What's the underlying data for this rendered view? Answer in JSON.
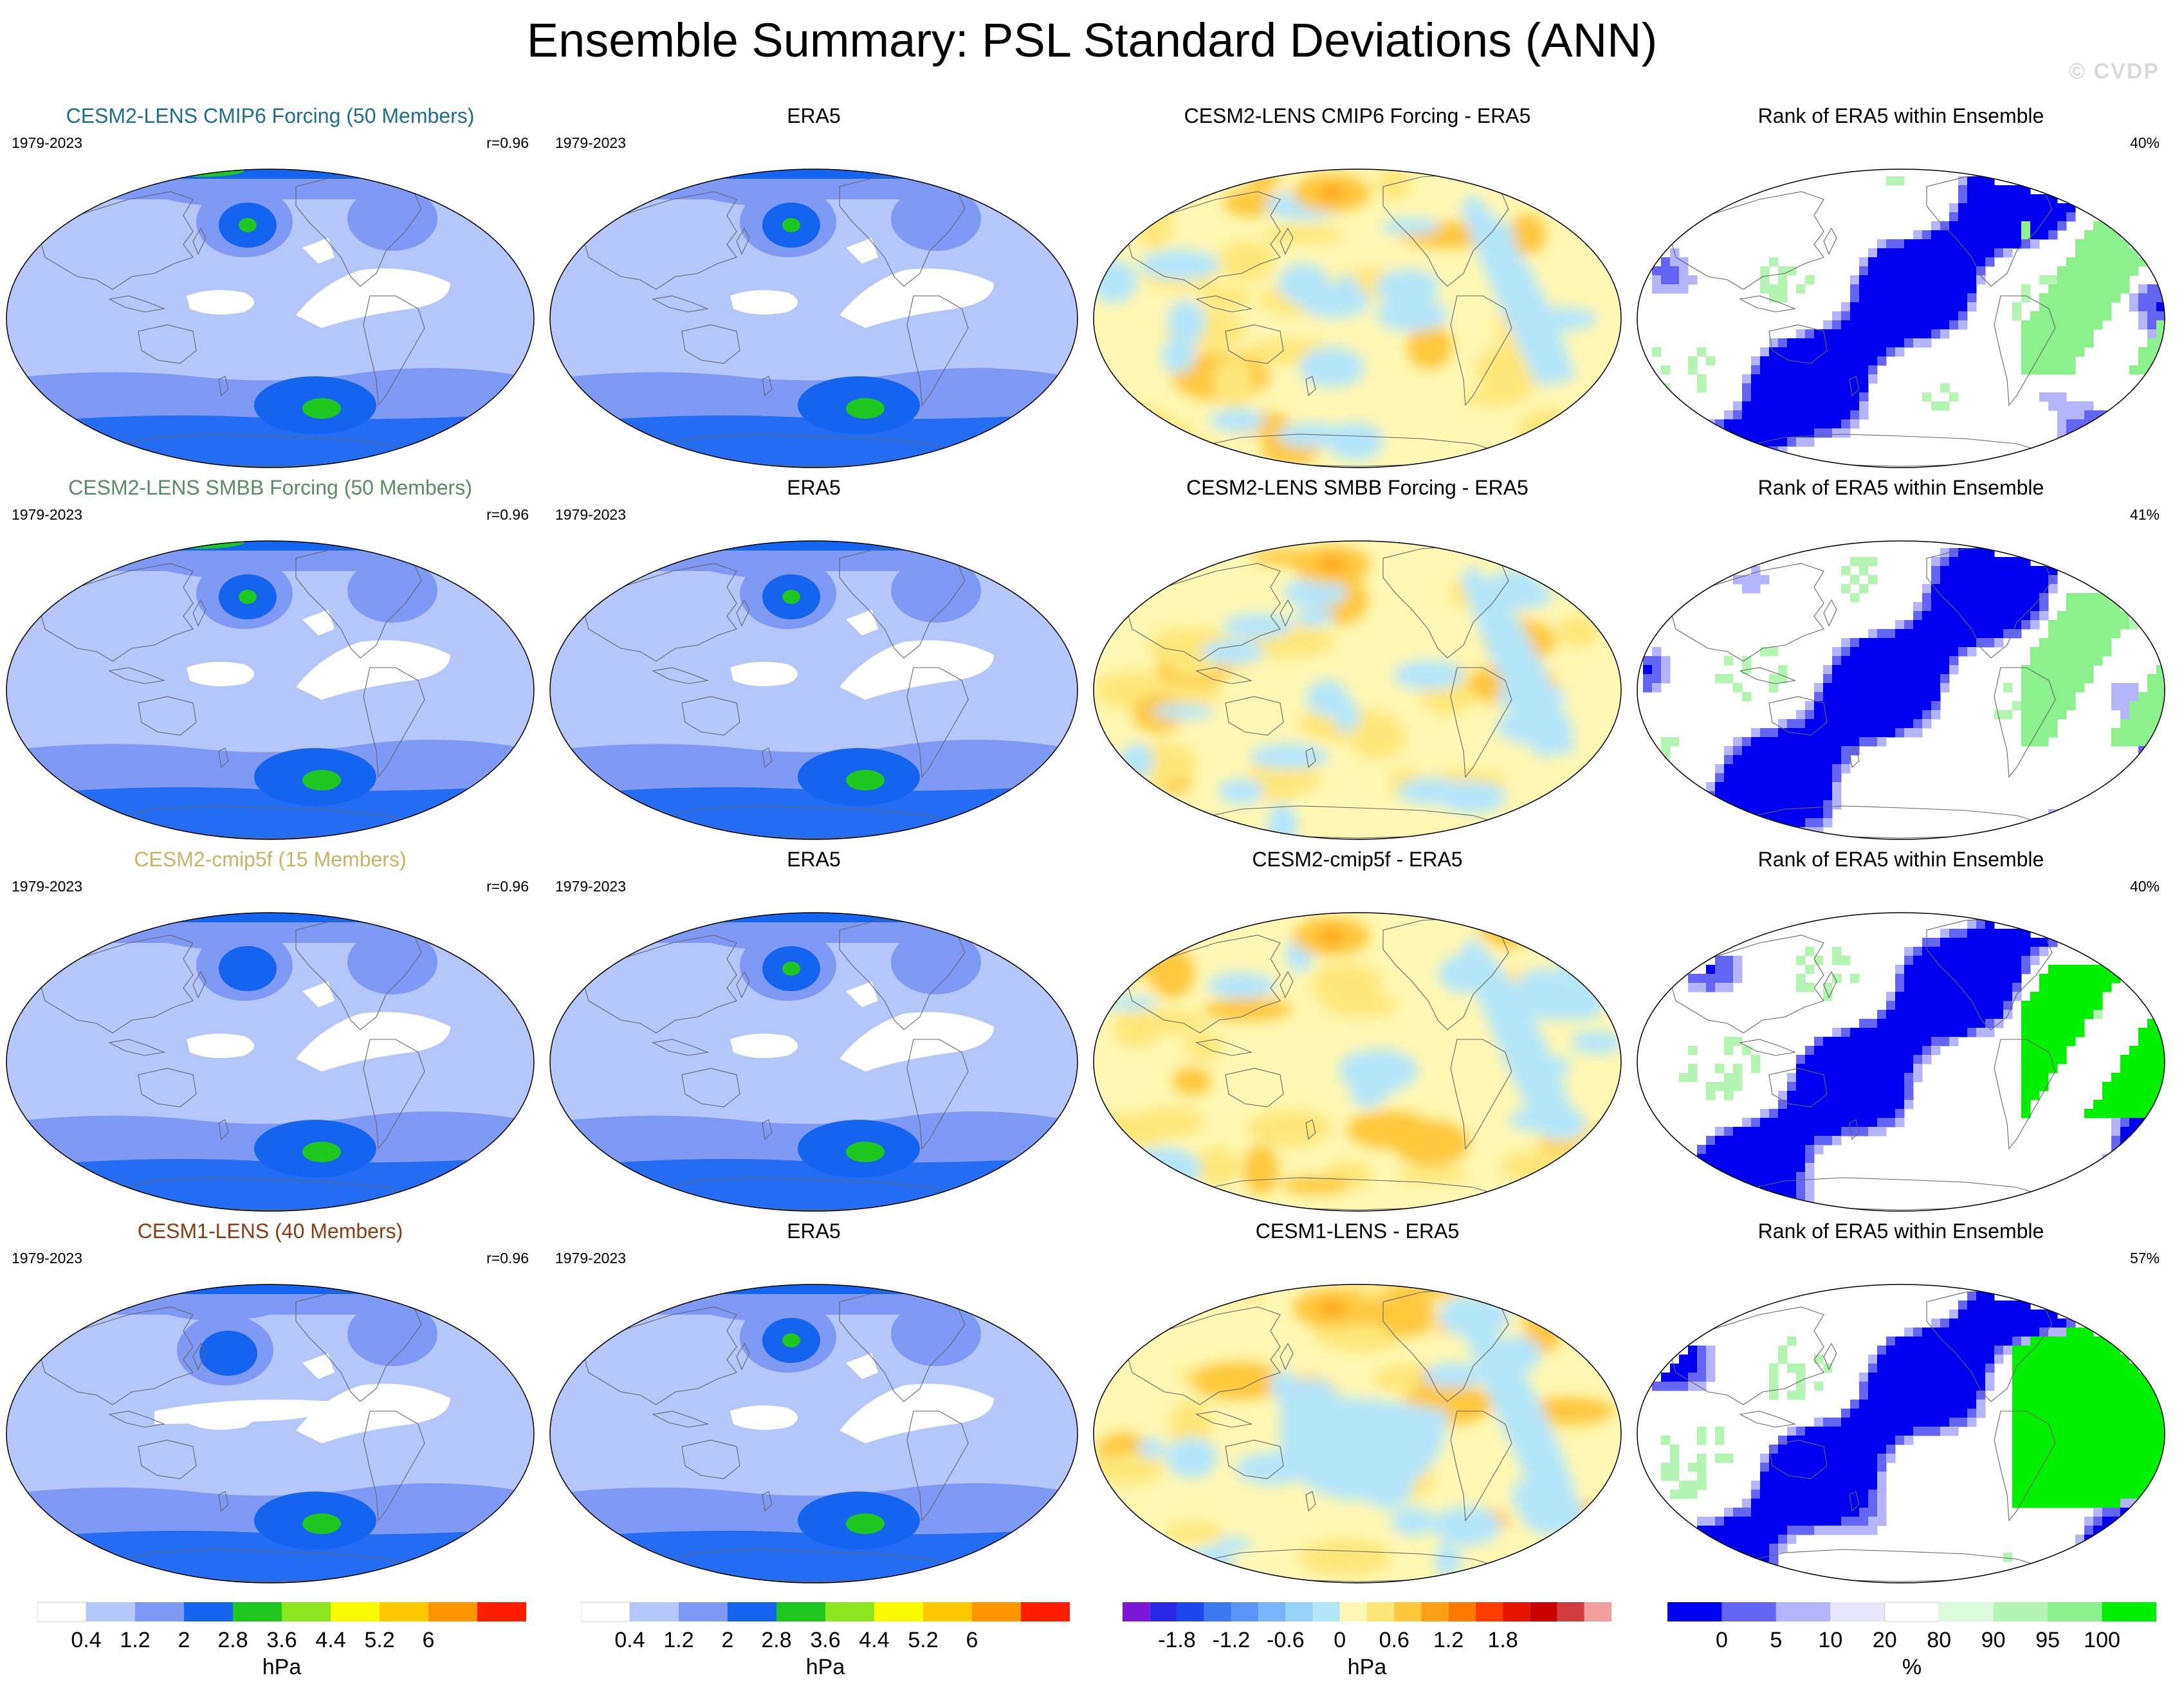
{
  "title": "Ensemble Summary: PSL Standard Deviations (ANN)",
  "watermark": "© CVDP",
  "colors": {
    "sd": [
      "#ffffff",
      "#b4c6fa",
      "#7f9af5",
      "#1464f0",
      "#1ec81e",
      "#8ce61e",
      "#fafa00",
      "#ffc800",
      "#ff9600",
      "#ff1e00"
    ],
    "diff": [
      "#7b18d8",
      "#2828e6",
      "#1e46f0",
      "#3c78f0",
      "#5a96f5",
      "#78b4fa",
      "#96d2fa",
      "#b4e6fa",
      "#fff8b4",
      "#ffe678",
      "#ffc83c",
      "#ffa014",
      "#ff7800",
      "#ff3c00",
      "#e61400",
      "#c80000",
      "#d23c3c",
      "#f0a0a0"
    ],
    "rank": [
      "#0000f0",
      "#6464f5",
      "#b4b4fa",
      "#e6e6fa",
      "#ffffff",
      "#dcfadc",
      "#b4f5b4",
      "#8cf08c",
      "#00f000"
    ]
  },
  "rows": [
    {
      "model": {
        "title": "CESM2-LENS CMIP6 Forcing (50 Members)",
        "color": "#1e6e8c",
        "years": "1979-2023",
        "corr": "r=0.96"
      },
      "obs": {
        "title": "ERA5",
        "years": "1979-2023"
      },
      "diff": {
        "title": "CESM2-LENS CMIP6 Forcing - ERA5"
      },
      "rank": {
        "title": "Rank of ERA5 within Ensemble",
        "pct": "40%"
      }
    },
    {
      "model": {
        "title": "CESM2-LENS SMBB Forcing (50 Members)",
        "color": "#5a8c64",
        "years": "1979-2023",
        "corr": "r=0.96"
      },
      "obs": {
        "title": "ERA5",
        "years": "1979-2023"
      },
      "diff": {
        "title": "CESM2-LENS SMBB Forcing - ERA5"
      },
      "rank": {
        "title": "Rank of ERA5 within Ensemble",
        "pct": "41%"
      }
    },
    {
      "model": {
        "title": "CESM2-cmip5f (15 Members)",
        "color": "#c8b464",
        "years": "1979-2023",
        "corr": "r=0.96"
      },
      "obs": {
        "title": "ERA5",
        "years": "1979-2023"
      },
      "diff": {
        "title": "CESM2-cmip5f - ERA5"
      },
      "rank": {
        "title": "Rank of ERA5 within Ensemble",
        "pct": "40%"
      }
    },
    {
      "model": {
        "title": "CESM1-LENS (40 Members)",
        "color": "#8c3c14",
        "years": "1979-2023",
        "corr": "r=0.96"
      },
      "obs": {
        "title": "ERA5",
        "years": "1979-2023"
      },
      "diff": {
        "title": "CESM1-LENS - ERA5"
      },
      "rank": {
        "title": "Rank of ERA5 within Ensemble",
        "pct": "57%"
      }
    }
  ],
  "colorbars": {
    "sd_model": {
      "ticks": [
        "0.4",
        "1.2",
        "2",
        "2.8",
        "3.6",
        "4.4",
        "5.2",
        "6"
      ],
      "unit": "hPa"
    },
    "sd_obs": {
      "ticks": [
        "0.4",
        "1.2",
        "2",
        "2.8",
        "3.6",
        "4.4",
        "5.2",
        "6"
      ],
      "unit": "hPa"
    },
    "diff": {
      "ticks": [
        "-1.8",
        "-1.2",
        "-0.6",
        "0",
        "0.6",
        "1.2",
        "1.8"
      ],
      "unit": "hPa"
    },
    "rank": {
      "ticks": [
        "0",
        "5",
        "10",
        "20",
        "80",
        "90",
        "95",
        "100"
      ],
      "unit": "%"
    }
  }
}
